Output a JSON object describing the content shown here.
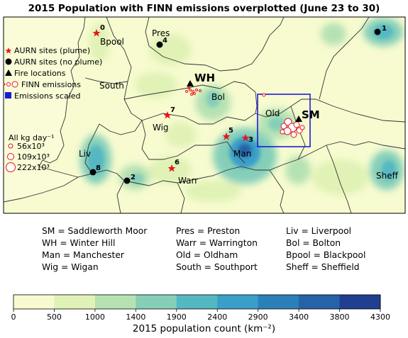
{
  "title": "2015 Population with FINN emissions overplotted (June 23 to 30)",
  "legend": {
    "items": [
      {
        "symbol": "red-star",
        "label": "AURN sites (plume)"
      },
      {
        "symbol": "black-circle",
        "label": "AURN sites (no plume)"
      },
      {
        "symbol": "black-triangle",
        "label": "Fire locations"
      },
      {
        "symbol": "red-open-circles",
        "label": "FINN emissions"
      },
      {
        "symbol": "blue-square",
        "label": "Emissions scaled"
      }
    ]
  },
  "size_legend": {
    "heading": "All kg day⁻¹",
    "entries": [
      "56x10³",
      "109x10³",
      "222x10³"
    ]
  },
  "sites": [
    {
      "id": "0",
      "type": "plume",
      "lon_lat_hint": "Blackpool"
    },
    {
      "id": "1",
      "type": "no-plume"
    },
    {
      "id": "2",
      "type": "no-plume"
    },
    {
      "id": "3",
      "type": "plume"
    },
    {
      "id": "4",
      "type": "no-plume"
    },
    {
      "id": "5",
      "type": "plume"
    },
    {
      "id": "6",
      "type": "plume"
    },
    {
      "id": "7",
      "type": "plume"
    },
    {
      "id": "8",
      "type": "no-plume"
    }
  ],
  "places": [
    "Bpool",
    "Pres",
    "South",
    "Bol",
    "Wig",
    "Old",
    "Man",
    "Warr",
    "Liv",
    "Sheff"
  ],
  "fires": [
    "WH",
    "SM"
  ],
  "abbreviations": {
    "col1": [
      "SM = Saddleworth Moor",
      "WH = Winter Hill",
      "Man = Manchester",
      "Wig = Wigan"
    ],
    "col2": [
      "Pres = Preston",
      "Warr = Warrington",
      "Old = Oldham",
      "South = Southport"
    ],
    "col3": [
      "Liv = Liverpool",
      "Bol = Bolton",
      "Bpool = Blackpool",
      "Sheff = Sheffield"
    ]
  },
  "colorbar": {
    "ticks": [
      "0",
      "500",
      "1000",
      "1400",
      "1900",
      "2400",
      "2900",
      "3400",
      "3800",
      "4300"
    ],
    "colors": [
      "#f7fbcf",
      "#e0f2b6",
      "#b6e2b3",
      "#85cfb9",
      "#54b8c2",
      "#3a9fc8",
      "#2c80b9",
      "#2562a8",
      "#213f91"
    ],
    "label": "2015 population count (km⁻²)"
  },
  "colors": {
    "plume": "#e8151b",
    "no_plume": "#000000",
    "box": "#1b1bd6",
    "base": "#f7fbcf"
  }
}
